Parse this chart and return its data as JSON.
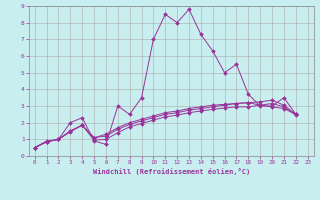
{
  "xlabel": "Windchill (Refroidissement éolien,°C)",
  "background_color": "#c8eef0",
  "grid_color": "#aaaaaa",
  "line_color": "#993399",
  "xlim": [
    -0.5,
    23.5
  ],
  "ylim": [
    0,
    9
  ],
  "xticks": [
    0,
    1,
    2,
    3,
    4,
    5,
    6,
    7,
    8,
    9,
    10,
    11,
    12,
    13,
    14,
    15,
    16,
    17,
    18,
    19,
    20,
    21,
    22,
    23
  ],
  "yticks": [
    0,
    1,
    2,
    3,
    4,
    5,
    6,
    7,
    8,
    9
  ],
  "series": [
    [
      0.5,
      0.9,
      1.0,
      2.0,
      2.3,
      0.9,
      0.7,
      3.0,
      2.5,
      3.5,
      7.0,
      8.5,
      8.0,
      8.8,
      7.3,
      6.3,
      5.0,
      5.5,
      3.7,
      3.0,
      3.0,
      3.5,
      2.5
    ],
    [
      0.5,
      0.85,
      1.0,
      1.5,
      1.85,
      1.1,
      1.2,
      1.6,
      1.9,
      2.1,
      2.3,
      2.5,
      2.6,
      2.75,
      2.85,
      2.95,
      3.05,
      3.15,
      3.2,
      3.25,
      3.35,
      3.05,
      2.5
    ],
    [
      0.5,
      0.85,
      1.0,
      1.5,
      1.85,
      1.1,
      1.3,
      1.7,
      2.0,
      2.2,
      2.4,
      2.6,
      2.7,
      2.85,
      2.95,
      3.05,
      3.1,
      3.15,
      3.2,
      3.05,
      2.95,
      2.85,
      2.5
    ],
    [
      0.5,
      0.85,
      1.0,
      1.45,
      1.85,
      0.95,
      1.0,
      1.4,
      1.75,
      1.95,
      2.15,
      2.35,
      2.45,
      2.6,
      2.7,
      2.8,
      2.88,
      2.95,
      2.95,
      3.05,
      3.15,
      2.95,
      2.45
    ]
  ]
}
